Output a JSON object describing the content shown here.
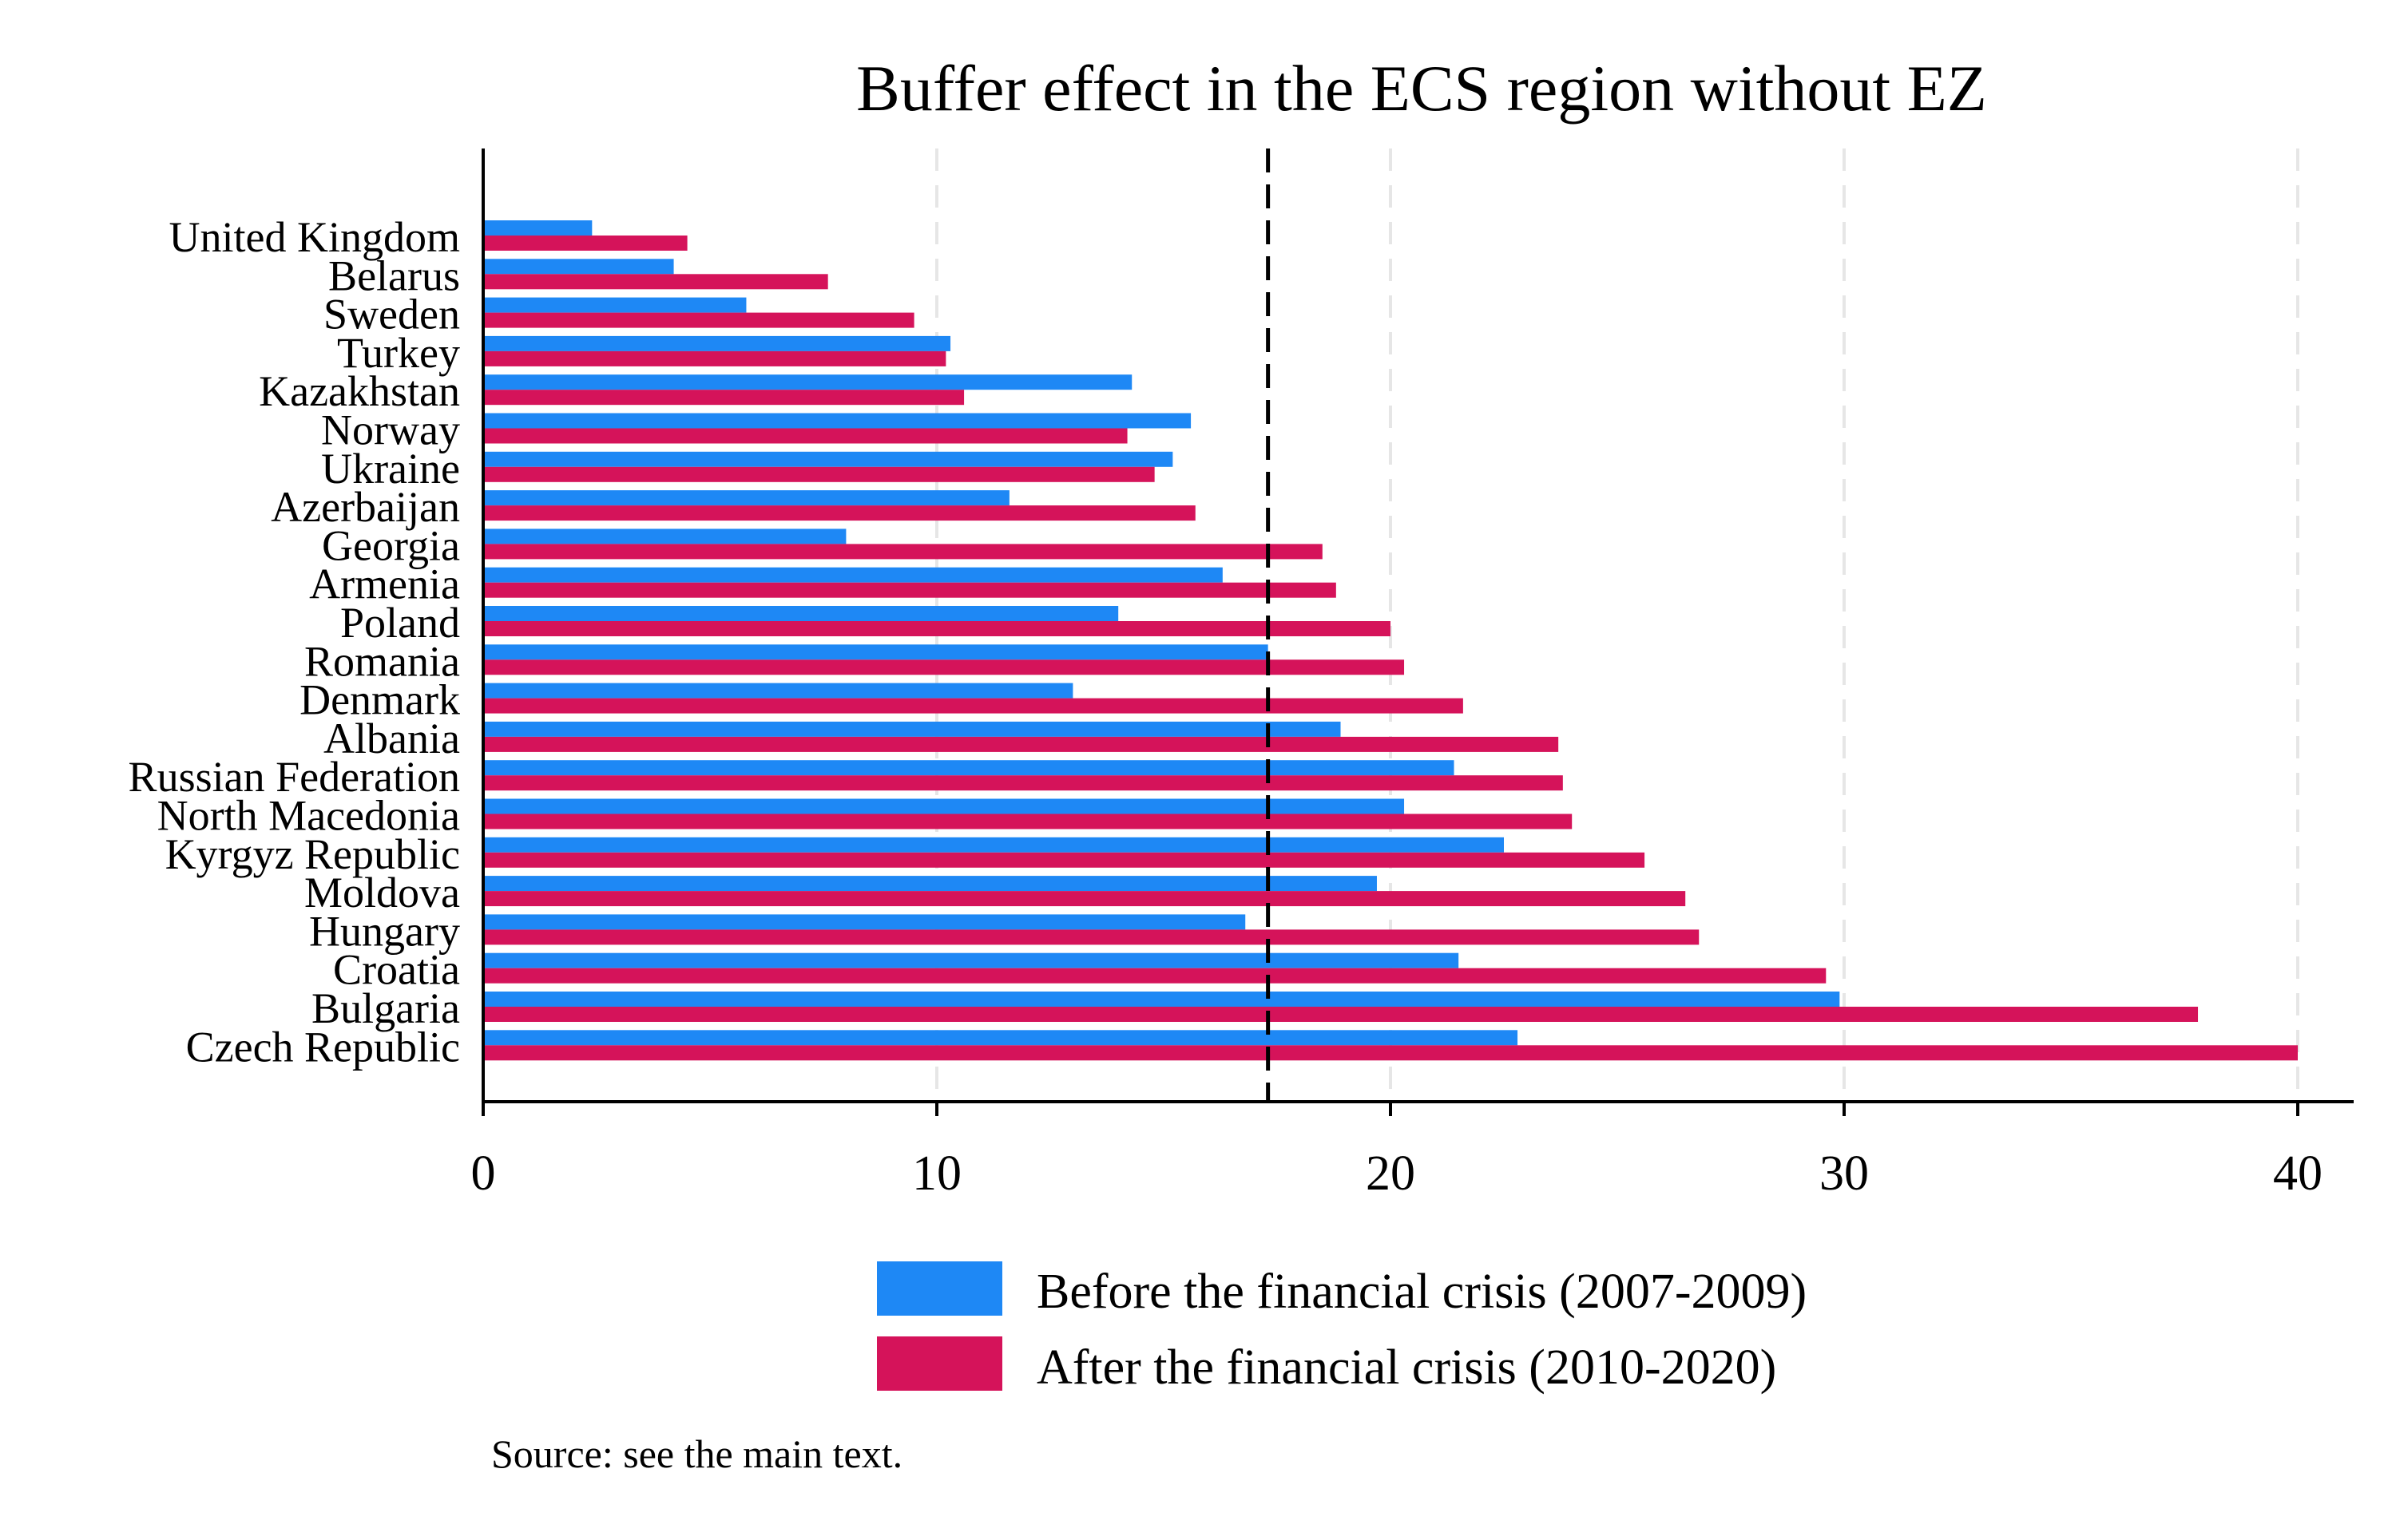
{
  "chart_data": {
    "type": "bar",
    "orientation": "horizontal",
    "title": "Buffer effect in the ECS region without EZ",
    "xlabel": "",
    "ylabel": "",
    "xlim": [
      0,
      41.2
    ],
    "xticks": [
      0,
      10,
      20,
      30,
      40
    ],
    "tick_labels": [
      "0",
      "10",
      "20",
      "30",
      "40"
    ],
    "grid": "vertical dashed at ticks",
    "reference_line": 17.3,
    "legend_position": "bottom",
    "source_note": "Source: see the main text.",
    "categories": [
      "United Kingdom",
      "Belarus",
      "Sweden",
      "Turkey",
      "Kazakhstan",
      "Norway",
      "Ukraine",
      "Azerbaijan",
      "Georgia",
      "Armenia",
      "Poland",
      "Romania",
      "Denmark",
      "Albania",
      "Russian Federation",
      "North Macedonia",
      "Kyrgyz Republic",
      "Moldova",
      "Hungary",
      "Croatia",
      "Bulgaria",
      "Czech Republic"
    ],
    "series": [
      {
        "name": "Before the financial crisis (2007-2009)",
        "color": "#1e88f5",
        "values": [
          2.4,
          4.2,
          5.8,
          10.3,
          14.3,
          15.6,
          15.2,
          11.6,
          8.0,
          16.3,
          14.0,
          17.3,
          13.0,
          18.9,
          21.4,
          20.3,
          22.5,
          19.7,
          16.8,
          21.5,
          29.9,
          22.8
        ]
      },
      {
        "name": "After the financial crisis (2010-2020)",
        "color": "#d5135a",
        "values": [
          4.5,
          7.6,
          9.5,
          10.2,
          10.6,
          14.2,
          14.8,
          15.7,
          18.5,
          18.8,
          20.0,
          20.3,
          21.6,
          23.7,
          23.8,
          24.0,
          25.6,
          26.5,
          26.8,
          29.6,
          37.8,
          40.0
        ]
      }
    ]
  }
}
